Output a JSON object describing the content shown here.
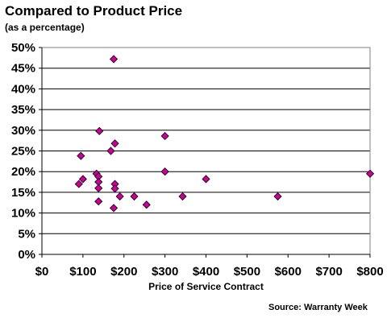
{
  "chart_data": {
    "type": "scatter",
    "title": "Compared to Product Price",
    "subtitle": "(as a percentage)",
    "xlabel": "Price of Service Contract",
    "ylabel": "",
    "xlim": [
      0,
      800
    ],
    "ylim": [
      0,
      50
    ],
    "x_ticks": [
      "$0",
      "$100",
      "$200",
      "$300",
      "$400",
      "$500",
      "$600",
      "$700",
      "$800"
    ],
    "y_ticks": [
      "0%",
      "5%",
      "10%",
      "15%",
      "20%",
      "25%",
      "30%",
      "35%",
      "40%",
      "45%",
      "50%"
    ],
    "grid": "horizontal",
    "marker": "diamond",
    "marker_color": "#cc0099",
    "series": [
      {
        "points": [
          {
            "x": 175,
            "y": 47.2
          },
          {
            "x": 140,
            "y": 29.8
          },
          {
            "x": 300,
            "y": 28.6
          },
          {
            "x": 178,
            "y": 26.8
          },
          {
            "x": 168,
            "y": 25.0
          },
          {
            "x": 95,
            "y": 23.8
          },
          {
            "x": 300,
            "y": 20.0
          },
          {
            "x": 133,
            "y": 19.5
          },
          {
            "x": 800,
            "y": 19.5
          },
          {
            "x": 138,
            "y": 18.8
          },
          {
            "x": 100,
            "y": 18.2
          },
          {
            "x": 400,
            "y": 18.2
          },
          {
            "x": 138,
            "y": 17.5
          },
          {
            "x": 90,
            "y": 17.0
          },
          {
            "x": 178,
            "y": 17.0
          },
          {
            "x": 138,
            "y": 16.0
          },
          {
            "x": 178,
            "y": 15.9
          },
          {
            "x": 190,
            "y": 14.0
          },
          {
            "x": 225,
            "y": 14.0
          },
          {
            "x": 343,
            "y": 14.0
          },
          {
            "x": 575,
            "y": 14.0
          },
          {
            "x": 138,
            "y": 12.8
          },
          {
            "x": 255,
            "y": 12.0
          },
          {
            "x": 175,
            "y": 11.2
          }
        ]
      }
    ]
  },
  "source": "Source: Warranty Week"
}
